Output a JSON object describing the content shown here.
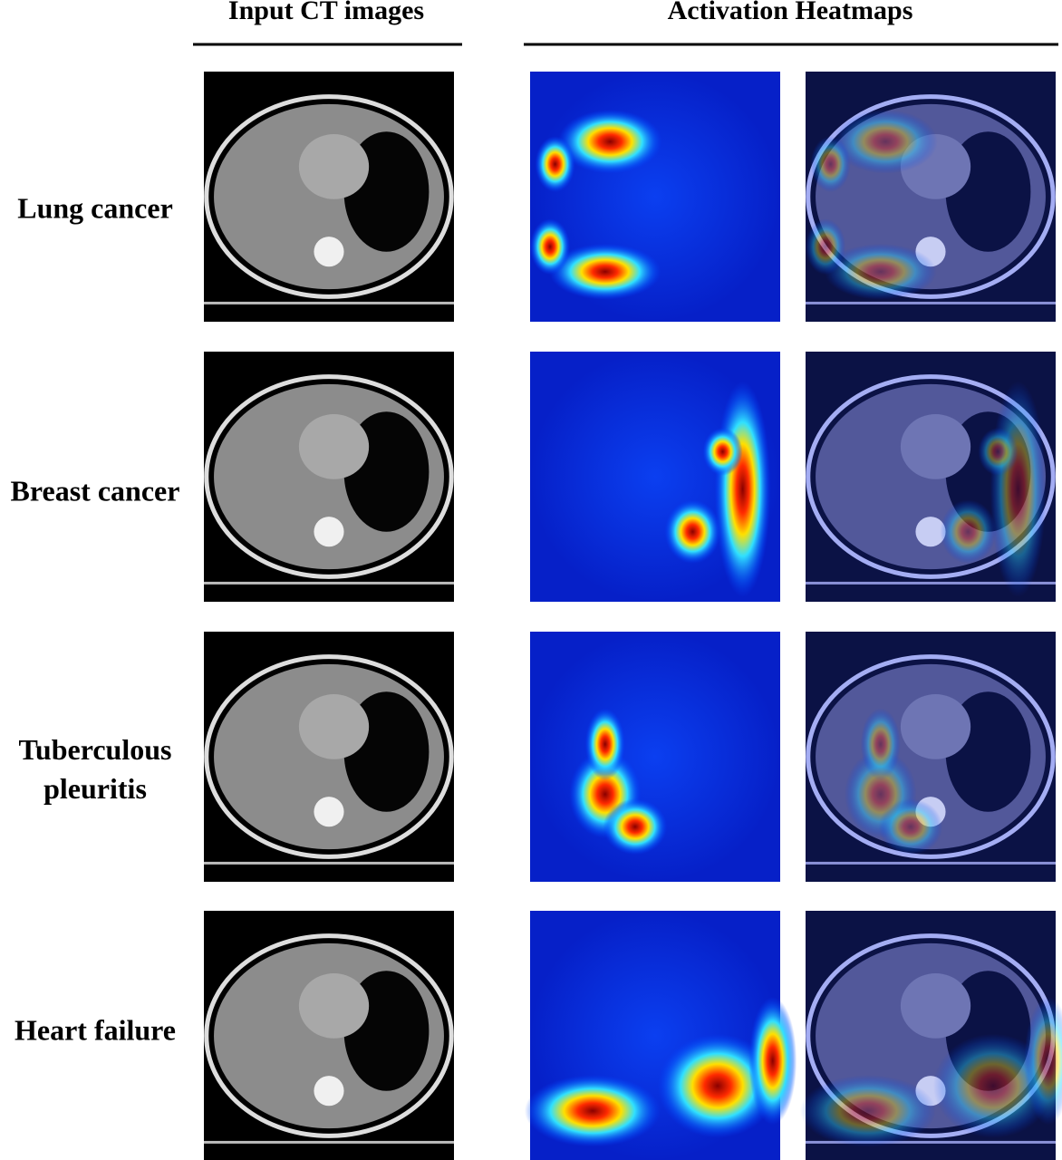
{
  "header": {
    "input_title": "Input CT images",
    "heatmap_title": "Activation Heatmaps"
  },
  "rows": [
    {
      "label_lines": [
        "Lung cancer"
      ]
    },
    {
      "label_lines": [
        "Breast cancer"
      ]
    },
    {
      "label_lines": [
        "Tuberculous",
        "pleuritis"
      ]
    },
    {
      "label_lines": [
        "Heart failure"
      ]
    }
  ]
}
